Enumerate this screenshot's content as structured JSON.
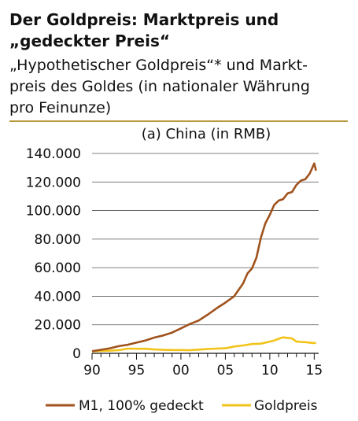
{
  "header": {
    "title_line1": "Der Goldpreis: Marktpreis und",
    "title_line2": "„gedeckter Preis“",
    "subtitle_line1": "„Hypothetischer Goldpreis“* und Markt-",
    "subtitle_line2": "preis des Goldes (in nationaler Währung",
    "subtitle_line3": "pro Feinunze)"
  },
  "colors": {
    "m1": "#a0521c",
    "gold": "#f2c319",
    "rule": "#b89a3c",
    "grid": "#555555"
  },
  "chart_data": {
    "type": "line",
    "title": "(a) China (in RMB)",
    "xlabel": "",
    "ylabel": "",
    "xlim": [
      1990,
      2015.5
    ],
    "ylim": [
      0,
      140000
    ],
    "x_ticks": [
      1990,
      1995,
      2000,
      2005,
      2010,
      2015
    ],
    "x_tick_labels": [
      "90",
      "95",
      "00",
      "05",
      "10",
      "15"
    ],
    "y_ticks": [
      0,
      20000,
      40000,
      60000,
      80000,
      100000,
      120000,
      140000
    ],
    "y_tick_labels": [
      "0",
      "20.000",
      "40.000",
      "60.000",
      "80.000",
      "100.000",
      "120.000",
      "140.000"
    ],
    "grid": "horizontal",
    "legend_position": "bottom",
    "series": [
      {
        "name": "M1, 100% gedeckt",
        "color": "#a0521c",
        "x": [
          1990,
          1991,
          1992,
          1993,
          1994,
          1995,
          1996,
          1997,
          1998,
          1999,
          2000,
          2001,
          2002,
          2003,
          2004,
          2005,
          2006,
          2007,
          2007.5,
          2008,
          2008.5,
          2009,
          2009.5,
          2010,
          2010.5,
          2011,
          2011.5,
          2012,
          2012.5,
          2013,
          2013.5,
          2014,
          2014.5,
          2015,
          2015.2
        ],
        "y": [
          1500,
          2500,
          3500,
          5000,
          6000,
          7500,
          9000,
          11000,
          12500,
          14500,
          17500,
          20500,
          23000,
          27000,
          31500,
          35500,
          40000,
          49000,
          56000,
          59500,
          67000,
          81000,
          91000,
          97000,
          104000,
          107000,
          108000,
          112000,
          113000,
          118000,
          121000,
          122000,
          126000,
          133000,
          128000
        ]
      },
      {
        "name": "Goldpreis",
        "color": "#f2c319",
        "x": [
          1990,
          1991,
          1992,
          1993,
          1994,
          1995,
          1996,
          1997,
          1998,
          1999,
          2000,
          2001,
          2002,
          2003,
          2004,
          2005,
          2006,
          2007,
          2008,
          2009,
          2010,
          2010.5,
          2011,
          2011.5,
          2012,
          2012.5,
          2013,
          2013.5,
          2014,
          2014.5,
          2015,
          2015.2
        ],
        "y": [
          1400,
          1700,
          1900,
          2200,
          3300,
          3200,
          3200,
          2700,
          2400,
          2300,
          2300,
          2200,
          2600,
          3000,
          3300,
          3500,
          4800,
          5500,
          6500,
          6800,
          8200,
          9000,
          10200,
          11200,
          10800,
          10400,
          8200,
          8000,
          7800,
          7500,
          7200,
          7300
        ]
      }
    ]
  }
}
